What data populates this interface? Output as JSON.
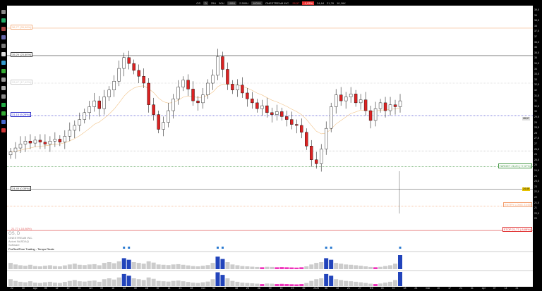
{
  "topbar": {
    "symbol": "OS",
    "timeframe": "D",
    "views": [
      "25U",
      "50U",
      "100U",
      "2.500U",
      "1000U"
    ],
    "company": "ONESTREAM INC.",
    "price": "28,57",
    "change": "-1,93%",
    "high": "34,64",
    "low": "21,76",
    "volume": "10,16K"
  },
  "lines": [
    {
      "label": "36,77 (28,96%)",
      "color": "#f4b183",
      "style": "solid",
      "price": 37.8,
      "side": "left"
    },
    {
      "label": "35,29 (23,80%)",
      "color": "#444444",
      "style": "solid",
      "price": 35.0,
      "side": "left"
    },
    {
      "label": "33,47 (17,42%)",
      "color": "#cccccc",
      "style": "dotted",
      "price": 32.2,
      "side": "left"
    },
    {
      "label": "31,15 (9,29%)",
      "color": "#3333cc",
      "style": "dotted",
      "price": 28.9,
      "side": "left"
    },
    {
      "label": "",
      "color": "#bbbbbb",
      "style": "dotted",
      "price": 25.3,
      "side": "left"
    },
    {
      "label": "TARGET 26,20 (+7,37%)",
      "color": "#4a9a4a",
      "style": "dotted",
      "price": 23.7,
      "side": "right"
    },
    {
      "label": "24,49 (0,39%)",
      "color": "#444444",
      "style": "solid",
      "price": 21.4,
      "side": "left"
    },
    {
      "label": "ENTRY LONG 23,60",
      "color": "#f4a070",
      "style": "dotted",
      "price": 19.7,
      "side": "right"
    },
    {
      "label": "STOP 21,77 (-8,88%)",
      "color": "#e03030",
      "style": "solid",
      "price": 17.2,
      "side": "right"
    },
    {
      "label": "",
      "color": "#e06060",
      "style": "solid",
      "price": 17.2,
      "side": "left",
      "label2": "21,77 (-10,80%)"
    }
  ],
  "price_axis": {
    "ticks": [
      "39,5",
      "39",
      "38,5",
      "38",
      "37,5",
      "37",
      "36,5",
      "36",
      "35,5",
      "35",
      "34,5",
      "34",
      "33,5",
      "33",
      "32,5",
      "32",
      "31,5",
      "31",
      "30,5",
      "30",
      "29,5",
      "29",
      "28,5",
      "28",
      "27,5",
      "27",
      "26,5",
      "26",
      "25,5",
      "25",
      "24,5",
      "24",
      "23,5",
      "23",
      "22,5",
      "22",
      "21,5",
      "21",
      "20,5",
      "20"
    ],
    "current_price": "28,57",
    "badge": "24,49"
  },
  "time_axis": [
    "22",
    "30",
    "ago",
    "05",
    "12",
    "19",
    "26",
    "set",
    "09",
    "16",
    "23",
    "30",
    "ott",
    "07",
    "14",
    "21",
    "28",
    "nov",
    "04",
    "11",
    "18",
    "25",
    "dic",
    "09",
    "16",
    "23",
    "30",
    "2025",
    "06",
    "13",
    "21",
    "27",
    "feb",
    "03",
    "10",
    "18",
    "24",
    "mar",
    "10",
    "17",
    "24",
    "31",
    "apr",
    "07",
    "14",
    "21"
  ],
  "info": {
    "symbol": "OS, D",
    "company": "ONESTREAM INC.",
    "exchange": "Azioni NASDAQ",
    "sector": "Software"
  },
  "indicator": {
    "label": "ProRealTime Trading - Tempo Reale"
  },
  "chart_data": {
    "type": "candlestick",
    "ylim": [
      17,
      39.8
    ],
    "closes": [
      25.2,
      25.6,
      26.0,
      26.3,
      26.1,
      26.4,
      26.2,
      26.0,
      26.3,
      26.5,
      26.2,
      26.8,
      27.4,
      27.9,
      28.5,
      29.2,
      29.8,
      30.4,
      29.6,
      30.8,
      31.5,
      32.4,
      33.7,
      34.8,
      34.2,
      33.5,
      32.9,
      32.2,
      30.0,
      29.0,
      27.5,
      28.2,
      29.4,
      30.6,
      31.8,
      32.5,
      31.6,
      30.4,
      30.2,
      31.0,
      32.2,
      33.0,
      34.9,
      33.6,
      32.1,
      31.5,
      32.0,
      31.2,
      30.6,
      30.2,
      29.6,
      29.9,
      29.2,
      29.0,
      29.3,
      28.8,
      28.5,
      28.0,
      27.9,
      27.2,
      25.8,
      24.4,
      24.0,
      25.5,
      27.6,
      29.8,
      31.0,
      30.4,
      30.8,
      31.1,
      30.2,
      30.5,
      29.4,
      28.4,
      29.6,
      30.2,
      29.4,
      30.0,
      29.8,
      30.4
    ],
    "volume": [
      40,
      30,
      25,
      22,
      28,
      20,
      18,
      22,
      25,
      20,
      18,
      24,
      30,
      35,
      28,
      26,
      30,
      32,
      25,
      40,
      45,
      38,
      50,
      70,
      60,
      45,
      40,
      35,
      50,
      42,
      30,
      28,
      26,
      30,
      32,
      28,
      24,
      20,
      18,
      22,
      26,
      40,
      80,
      65,
      45,
      30,
      25,
      20,
      18,
      16,
      14,
      12,
      15,
      14,
      12,
      13,
      12,
      11,
      10,
      12,
      18,
      30,
      40,
      45,
      70,
      60,
      40,
      35,
      30,
      28,
      25,
      22,
      18,
      14,
      12,
      15,
      20,
      25,
      35,
      90
    ],
    "up_color": "#ffffff",
    "down_color": "#dd2222",
    "vol_gray": "#cccccc",
    "vol_blue": "#2244bb",
    "vol_magenta": "#ee33bb"
  }
}
